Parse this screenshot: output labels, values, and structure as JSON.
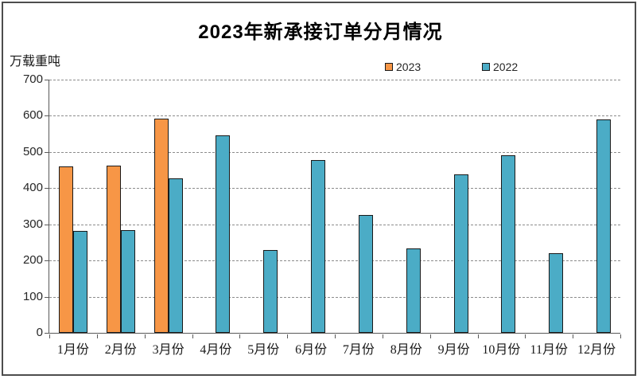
{
  "chart": {
    "title": "2023年新承接订单分月情况",
    "unit_label": "万载重吨"
  },
  "chart_data": {
    "type": "bar",
    "title": "2023年新承接订单分月情况",
    "ylabel": "万载重吨",
    "xlabel": "",
    "categories": [
      "1月份",
      "2月份",
      "3月份",
      "4月份",
      "5月份",
      "6月份",
      "7月份",
      "8月份",
      "9月份",
      "10月份",
      "11月份",
      "12月份"
    ],
    "series": [
      {
        "name": "2023",
        "color": "#F79646",
        "values": [
          461,
          463,
          592,
          null,
          null,
          null,
          null,
          null,
          null,
          null,
          null,
          null
        ]
      },
      {
        "name": "2022",
        "color": "#4BACC6",
        "values": [
          281,
          283,
          428,
          545,
          230,
          477,
          325,
          233,
          439,
          491,
          220,
          591
        ]
      }
    ],
    "ylim": [
      0,
      700
    ],
    "ytick_step": 100,
    "grid": "horizontal-dashed",
    "legend_position": "top-center"
  },
  "colors": {
    "series_2023": "#F79646",
    "series_2022": "#4BACC6",
    "bar_border": "#1a1a1a",
    "axis": "#595959",
    "gridline": "#8c8c8c",
    "frame_border": "#4d4d4d",
    "title_text": "#000000"
  }
}
